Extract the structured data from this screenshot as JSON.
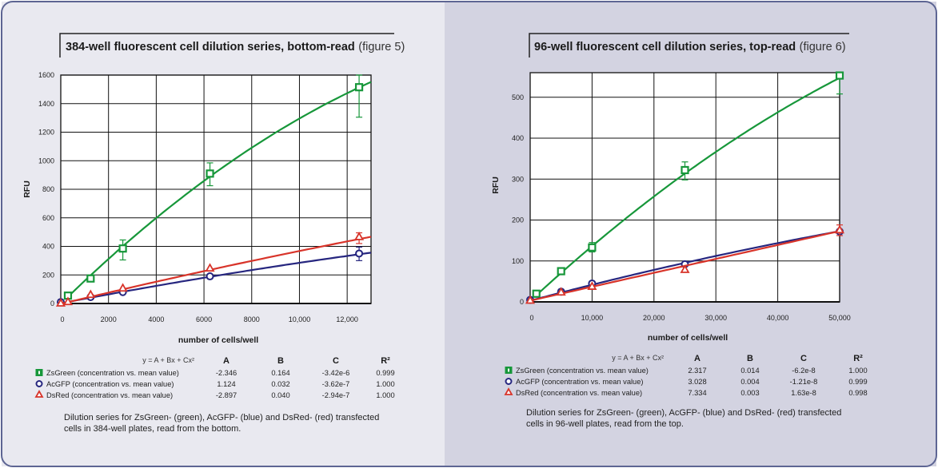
{
  "colors": {
    "green": "#17973a",
    "blue": "#26267f",
    "red": "#d8342a",
    "border": "#5d6593",
    "left_bg": "#e9e9f0",
    "right_bg": "#d3d3e1"
  },
  "chart_data": [
    {
      "type": "scatter",
      "title": "384-well fluorescent cell dilution series, bottom-read",
      "title_suffix": "(figure 5)",
      "xlabel": "number of cells/well",
      "ylabel": "RFU",
      "xlim": [
        0,
        13000
      ],
      "ylim": [
        0,
        1600
      ],
      "xticks": [
        0,
        2000,
        4000,
        6000,
        8000,
        10000,
        12000
      ],
      "xtick_labels": [
        "0",
        "2000",
        "4000",
        "6000",
        "8000",
        "10,000",
        "12,000"
      ],
      "yticks": [
        0,
        200,
        400,
        600,
        800,
        1000,
        1200,
        1400,
        1600
      ],
      "ytick_labels": [
        "0",
        "200",
        "400",
        "600",
        "800",
        "1000",
        "1200",
        "1400",
        "1600"
      ],
      "grid": true,
      "fit_equation": "y = A + Bx + Cx²",
      "table_headers": [
        "A",
        "B",
        "C",
        "R²"
      ],
      "series": [
        {
          "name": "ZsGreen (concentration vs. mean value)",
          "color": "green",
          "marker": "square",
          "x": [
            300,
            1250,
            2600,
            6250,
            12500
          ],
          "y": [
            55,
            175,
            385,
            910,
            1515
          ],
          "err": [
            null,
            null,
            [
              305,
              445
            ],
            [
              825,
              985
            ],
            [
              1305,
              1600
            ]
          ],
          "fit": {
            "A": "-2.346",
            "B": "0.164",
            "C": "-3.42e-6",
            "R2": "0.999"
          }
        },
        {
          "name": "AcGFP (concentration vs. mean value)",
          "color": "blue",
          "marker": "circle",
          "x": [
            0,
            1250,
            2600,
            6250,
            12500
          ],
          "y": [
            10,
            45,
            80,
            190,
            350
          ],
          "err": [
            null,
            null,
            null,
            null,
            [
              300,
              395
            ]
          ],
          "fit": {
            "A": "1.124",
            "B": "0.032",
            "C": "-3.62e-7",
            "R2": "1.000"
          }
        },
        {
          "name": "DsRed (concentration vs. mean value)",
          "color": "red",
          "marker": "triangle",
          "x": [
            0,
            300,
            1250,
            2600,
            6250,
            12500
          ],
          "y": [
            0,
            10,
            60,
            105,
            245,
            465
          ],
          "err": [
            null,
            null,
            null,
            null,
            null,
            [
              420,
              495
            ]
          ],
          "fit": {
            "A": "-2.897",
            "B": "0.040",
            "C": "-2.94e-7",
            "R2": "1.000"
          }
        }
      ],
      "caption": [
        "Dilution series for ZsGreen- (green), AcGFP- (blue) and DsRed- (red) transfected",
        "cells in 384-well plates, read from the bottom."
      ]
    },
    {
      "type": "scatter",
      "title": "96-well fluorescent cell dilution series, top-read",
      "title_suffix": "(figure 6)",
      "xlabel": "number of cells/well",
      "ylabel": "RFU",
      "xlim": [
        0,
        50000
      ],
      "ylim": [
        0,
        560
      ],
      "xticks": [
        0,
        10000,
        20000,
        30000,
        40000,
        50000
      ],
      "xtick_labels": [
        "0",
        "10,000",
        "20,000",
        "30,000",
        "40,000",
        "50,000"
      ],
      "yticks": [
        0,
        100,
        200,
        300,
        400,
        500
      ],
      "ytick_labels": [
        "0",
        "100",
        "200",
        "300",
        "400",
        "500"
      ],
      "grid": true,
      "fit_equation": "y = A + Bx + Cx²",
      "table_headers": [
        "A",
        "B",
        "C",
        "R²"
      ],
      "series": [
        {
          "name": "ZsGreen (concentration vs. mean value)",
          "color": "green",
          "marker": "square",
          "x": [
            1000,
            5000,
            10000,
            25000,
            50000
          ],
          "y": [
            20,
            75,
            133,
            322,
            553
          ],
          "err": [
            null,
            null,
            [
              122,
              145
            ],
            [
              298,
              342
            ],
            [
              508,
              560
            ]
          ],
          "fit": {
            "A": "2.317",
            "B": "0.014",
            "C": "-6.2e-8",
            "R2": "1.000"
          }
        },
        {
          "name": "AcGFP (concentration vs. mean value)",
          "color": "blue",
          "marker": "circle",
          "x": [
            0,
            5000,
            10000,
            25000,
            50000
          ],
          "y": [
            5,
            25,
            45,
            92,
            172
          ],
          "err": [
            null,
            null,
            null,
            null,
            null
          ],
          "fit": {
            "A": "3.028",
            "B": "0.004",
            "C": "-1.21e-8",
            "R2": "0.999"
          }
        },
        {
          "name": "DsRed (concentration vs. mean value)",
          "color": "red",
          "marker": "triangle",
          "x": [
            0,
            5000,
            10000,
            25000,
            50000
          ],
          "y": [
            3,
            23,
            37,
            78,
            175
          ],
          "err": [
            null,
            null,
            null,
            null,
            [
              162,
              188
            ]
          ],
          "fit": {
            "A": "7.334",
            "B": "0.003",
            "C": "1.63e-8",
            "R2": "0.998"
          }
        }
      ],
      "caption": [
        "Dilution series for ZsGreen- (green), AcGFP- (blue) and DsRed- (red) transfected",
        "cells in 96-well plates, read from the top."
      ]
    }
  ]
}
